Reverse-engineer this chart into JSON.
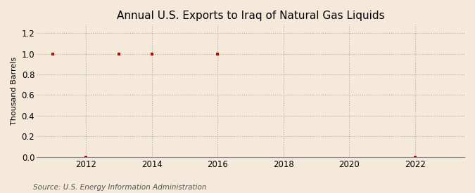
{
  "title": "Annual U.S. Exports to Iraq of Natural Gas Liquids",
  "ylabel": "Thousand Barrels",
  "source": "Source: U.S. Energy Information Administration",
  "background_color": "#f5ead9",
  "plot_bg_color": "#f5ead9",
  "xlim": [
    2010.5,
    2023.5
  ],
  "ylim": [
    0.0,
    1.28
  ],
  "xticks": [
    2012,
    2014,
    2016,
    2018,
    2020,
    2022
  ],
  "yticks": [
    0.0,
    0.2,
    0.4,
    0.6,
    0.8,
    1.0,
    1.2
  ],
  "data_x": [
    2011,
    2012,
    2013,
    2014,
    2016,
    2022
  ],
  "data_y": [
    1.0,
    0.0,
    1.0,
    1.0,
    1.0,
    0.0
  ],
  "marker_color": "#cc0000",
  "marker": "s",
  "marker_size": 3,
  "grid_color": "#aaaaaa",
  "grid_linestyle": ":",
  "grid_linewidth": 0.8,
  "title_fontsize": 11,
  "title_fontweight": "normal",
  "label_fontsize": 8,
  "tick_fontsize": 8.5,
  "source_fontsize": 7.5
}
